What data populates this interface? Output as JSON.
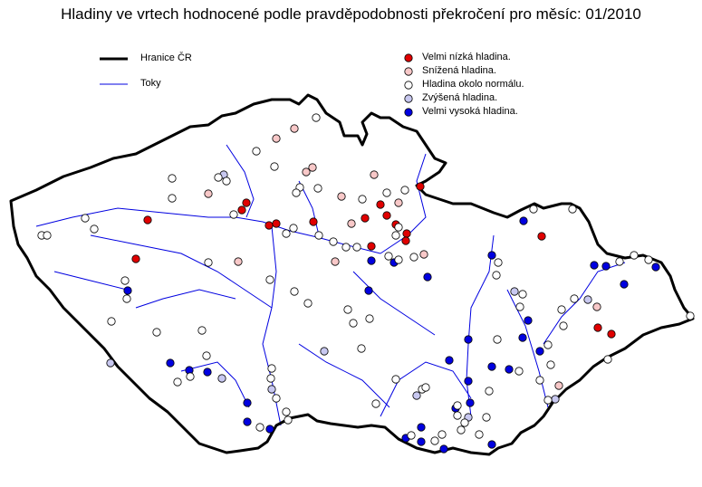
{
  "title": "Hladiny ve vrtech hodnocené podle pravděpodobnosti překročení pro měsíc: 01/2010",
  "legend_lines": [
    {
      "label": "Hranice ČR",
      "color": "#000000"
    },
    {
      "label": "Toky",
      "color": "#0000e0"
    }
  ],
  "legend_points": [
    {
      "key": "R",
      "label": "Velmi nízká hladina.",
      "color": "#e00000"
    },
    {
      "key": "P",
      "label": "Snížená hladina.",
      "color": "#f8c8c8"
    },
    {
      "key": "W",
      "label": "Hladina okolo normálu.",
      "color": "#ffffff"
    },
    {
      "key": "L",
      "label": "Zvýšená hladina.",
      "color": "#c8c8f0"
    },
    {
      "key": "B",
      "label": "Velmi vysoká hladina.",
      "color": "#0000e0"
    }
  ]
}
